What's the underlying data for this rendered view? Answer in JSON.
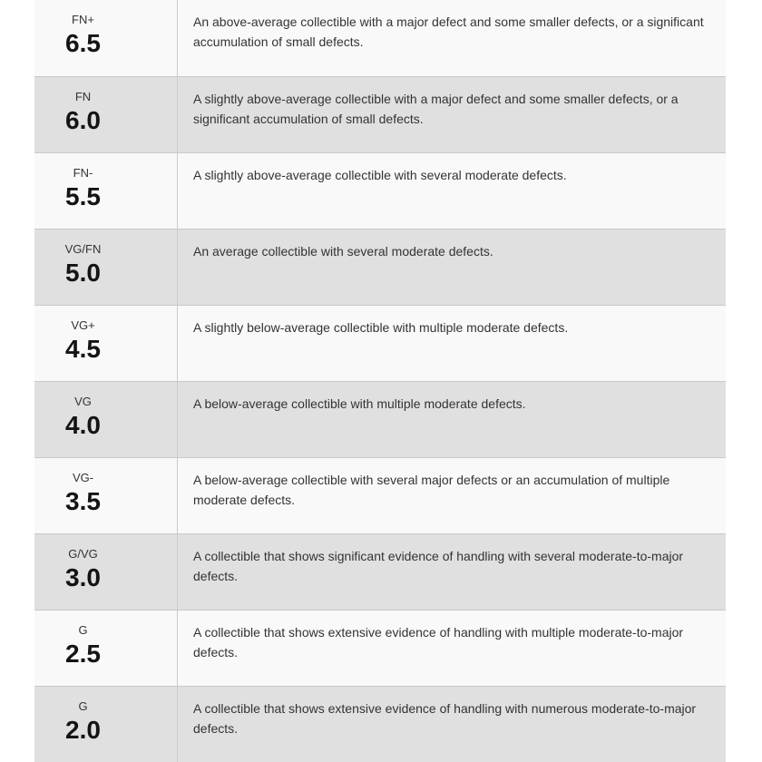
{
  "colors": {
    "row-bg": "#f9f9f9",
    "row-alt-bg": "#e0e0e0",
    "border": "#c9c9c9",
    "divider": "#cbcbcb",
    "label-color": "#333333",
    "grade-color": "#141414",
    "desc-color": "#333333"
  },
  "table": {
    "rows": [
      {
        "label": "FN+",
        "grade": "6.5",
        "description": "An above-average collectible with a major defect and some smaller defects, or a significant accumulation of small defects."
      },
      {
        "label": "FN",
        "grade": "6.0",
        "description": "A slightly above-average collectible with a major defect and some smaller defects, or a significant accumulation of small defects."
      },
      {
        "label": "FN-",
        "grade": "5.5",
        "description": "A slightly above-average collectible with several moderate defects."
      },
      {
        "label": "VG/FN",
        "grade": "5.0",
        "description": "An average collectible with several moderate defects."
      },
      {
        "label": "VG+",
        "grade": "4.5",
        "description": "A slightly below-average collectible with multiple moderate defects."
      },
      {
        "label": "VG",
        "grade": "4.0",
        "description": "A below-average collectible with multiple moderate defects."
      },
      {
        "label": "VG-",
        "grade": "3.5",
        "description": "A below-average collectible with several major defects or an accumulation of multiple moderate defects."
      },
      {
        "label": "G/VG",
        "grade": "3.0",
        "description": "A collectible that shows significant evidence of handling with several moderate-to-major defects."
      },
      {
        "label": "G",
        "grade": "2.5",
        "description": "A collectible that shows extensive evidence of handling with multiple moderate-to-major defects."
      },
      {
        "label": "G",
        "grade": "2.0",
        "description": "A collectible that shows extensive evidence of handling with numerous moderate-to-major defects."
      }
    ]
  }
}
